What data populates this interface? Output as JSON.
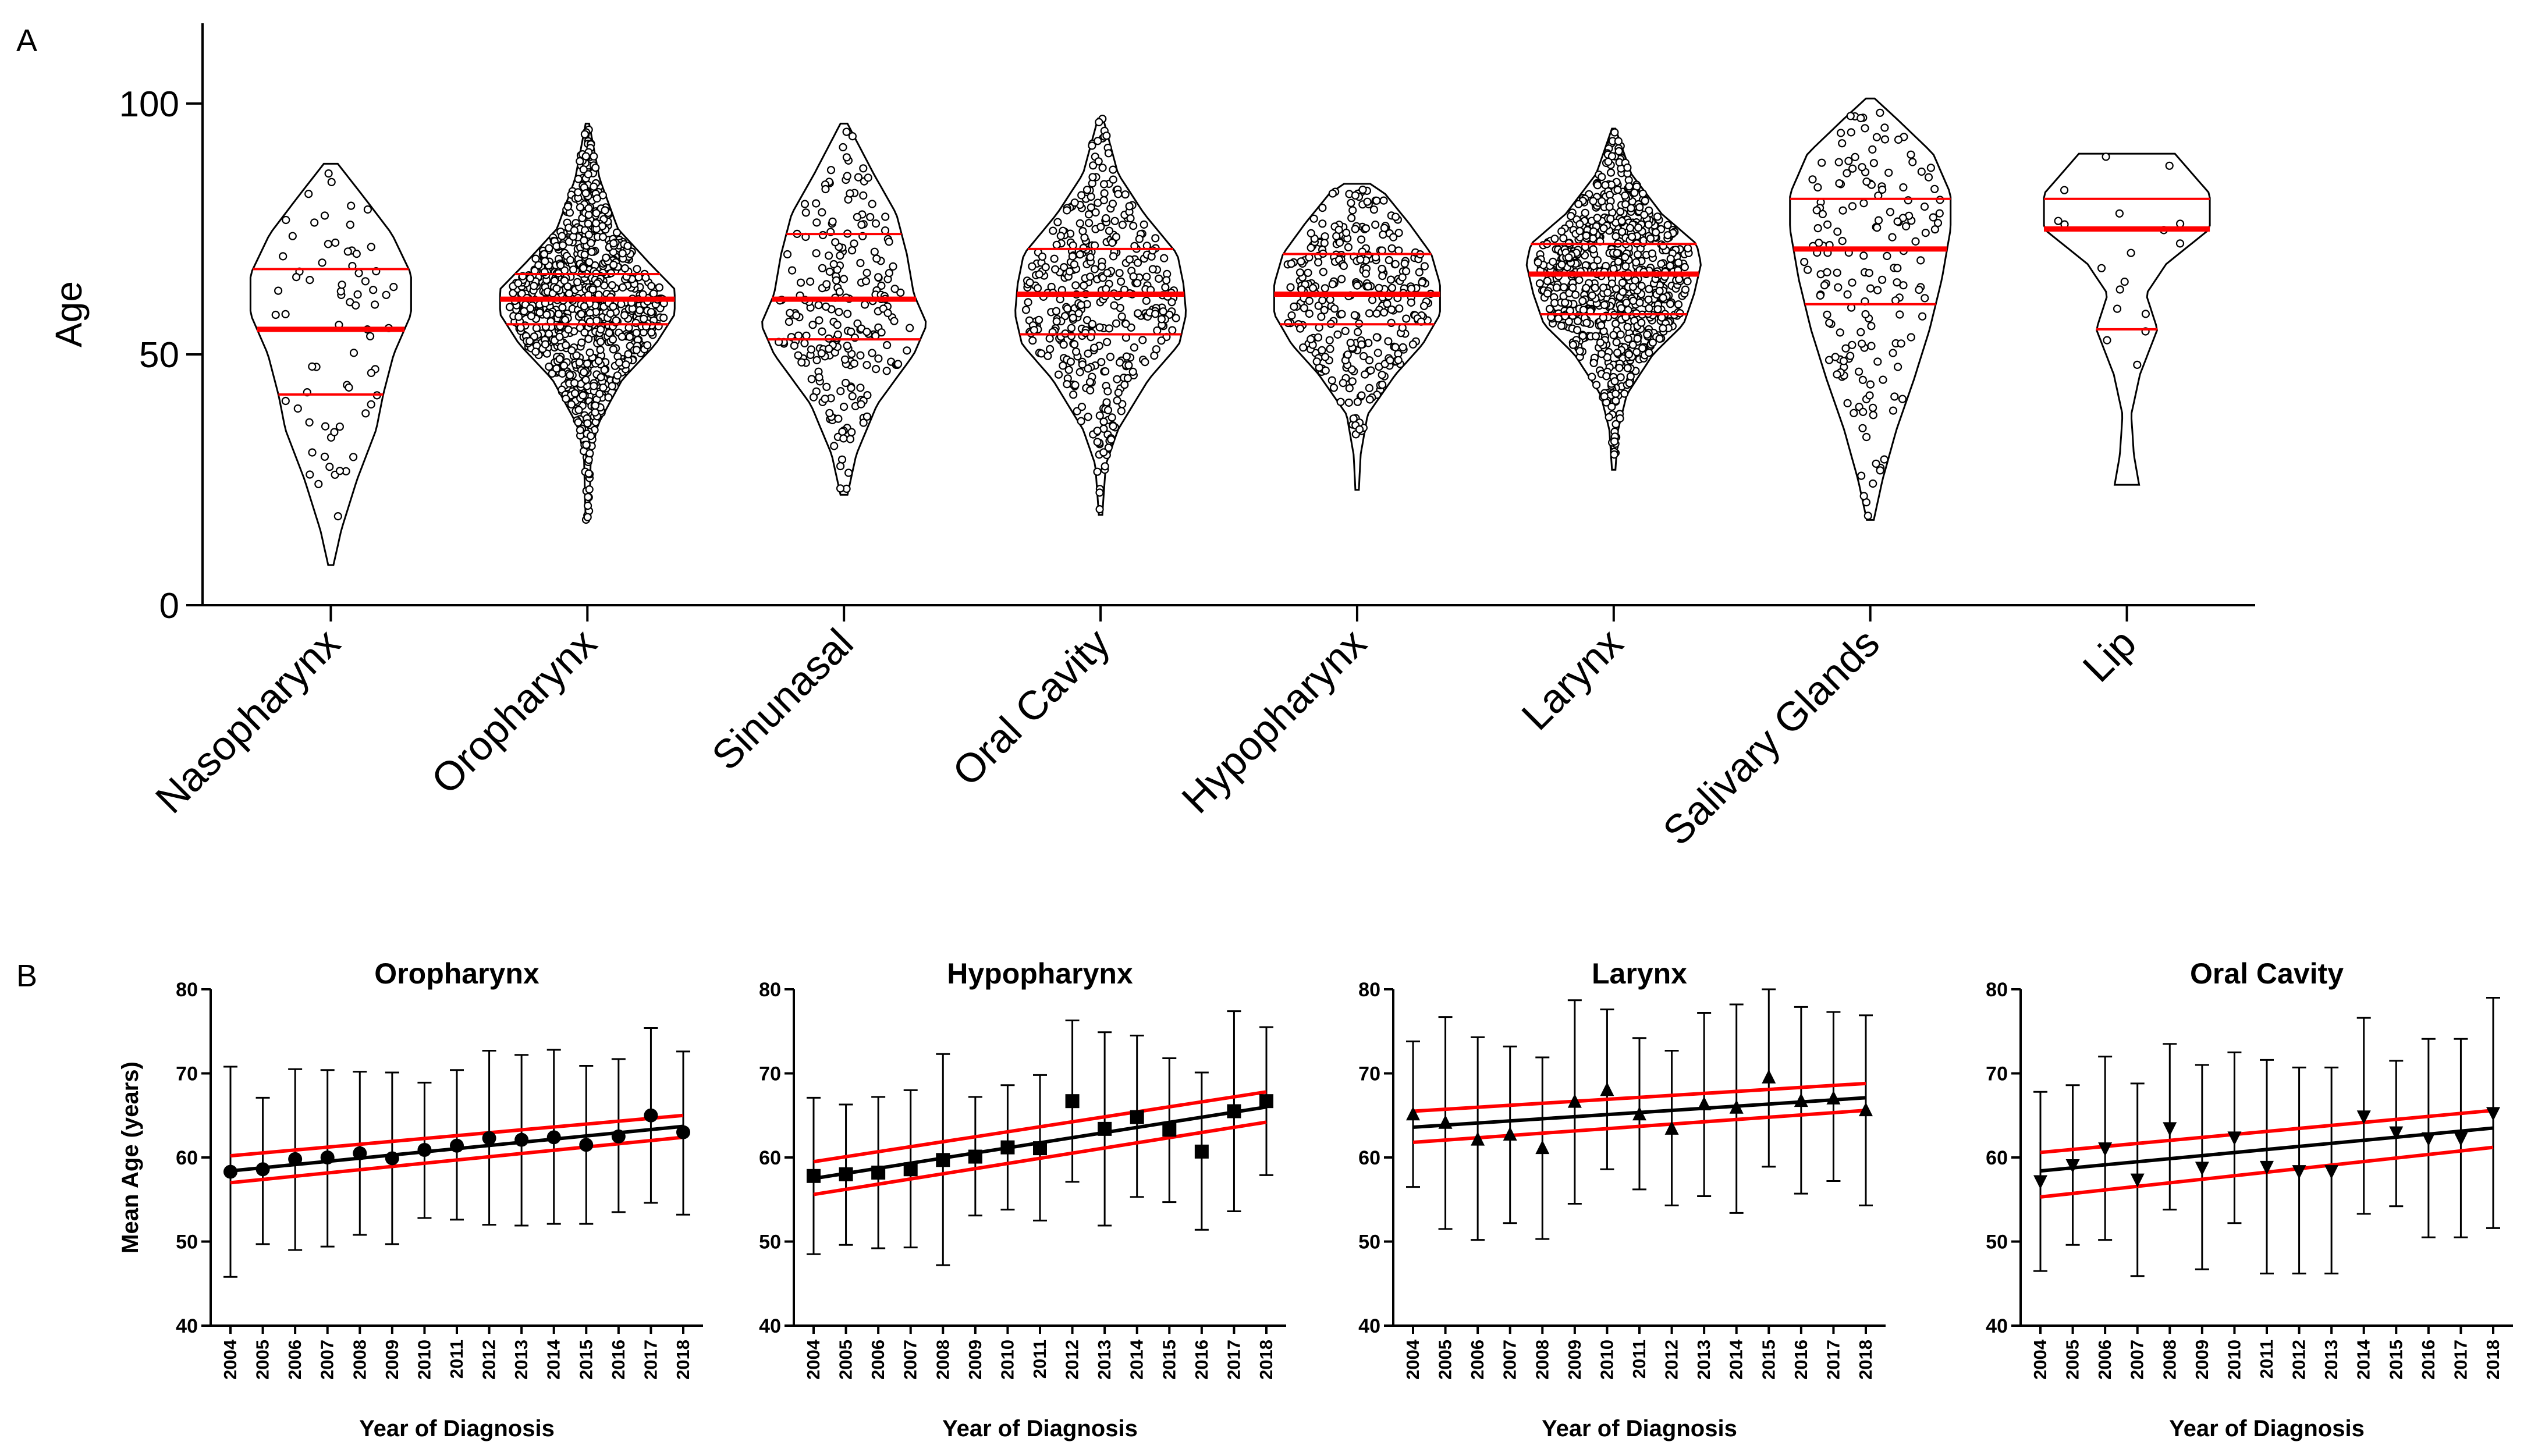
{
  "figure": {
    "panel_a_label": "A",
    "panel_b_label": "B",
    "colors": {
      "axis": "#000000",
      "trend": "#ff0000",
      "points": "#000000",
      "background": "#ffffff"
    }
  },
  "chart_data": [
    {
      "type": "violin",
      "id": "A",
      "title": "",
      "ylabel": "Age",
      "xlabel": "",
      "ylim": [
        0,
        116
      ],
      "yticks": [
        0,
        50,
        100
      ],
      "categories": [
        "Nasopharynx",
        "Oropharynx",
        "Sinunasal",
        "Oral Cavity",
        "Hypopharynx",
        "Larynx",
        "Salivary Glands",
        "Lip"
      ],
      "violins": [
        {
          "name": "Nasopharynx",
          "min": 8,
          "max": 88,
          "q1": 42,
          "median": 55,
          "q3": 67,
          "n": 70,
          "profile": [
            [
              8,
              0.03
            ],
            [
              15,
              0.12
            ],
            [
              25,
              0.3
            ],
            [
              35,
              0.52
            ],
            [
              42,
              0.6
            ],
            [
              50,
              0.72
            ],
            [
              58,
              0.92
            ],
            [
              66,
              0.92
            ],
            [
              74,
              0.7
            ],
            [
              82,
              0.35
            ],
            [
              88,
              0.08
            ]
          ]
        },
        {
          "name": "Oropharynx",
          "min": 17,
          "max": 96,
          "q1": 56,
          "median": 61,
          "q3": 66,
          "n": 900,
          "profile": [
            [
              17,
              0.02
            ],
            [
              30,
              0.04
            ],
            [
              36,
              0.12
            ],
            [
              45,
              0.4
            ],
            [
              52,
              0.78
            ],
            [
              58,
              1.0
            ],
            [
              63,
              1.0
            ],
            [
              68,
              0.72
            ],
            [
              75,
              0.35
            ],
            [
              85,
              0.14
            ],
            [
              96,
              0.02
            ]
          ]
        },
        {
          "name": "Sinunasal",
          "min": 22,
          "max": 96,
          "q1": 53,
          "median": 61,
          "q3": 74,
          "n": 230,
          "profile": [
            [
              22,
              0.04
            ],
            [
              30,
              0.14
            ],
            [
              40,
              0.38
            ],
            [
              50,
              0.8
            ],
            [
              56,
              0.95
            ],
            [
              62,
              0.8
            ],
            [
              70,
              0.72
            ],
            [
              78,
              0.6
            ],
            [
              86,
              0.34
            ],
            [
              96,
              0.04
            ]
          ]
        },
        {
          "name": "Oral Cavity",
          "min": 18,
          "max": 97,
          "q1": 54,
          "median": 62,
          "q3": 71,
          "n": 400,
          "profile": [
            [
              18,
              0.02
            ],
            [
              28,
              0.06
            ],
            [
              35,
              0.2
            ],
            [
              45,
              0.55
            ],
            [
              52,
              0.9
            ],
            [
              58,
              0.98
            ],
            [
              64,
              0.95
            ],
            [
              70,
              0.88
            ],
            [
              78,
              0.5
            ],
            [
              86,
              0.2
            ],
            [
              97,
              0.03
            ]
          ]
        },
        {
          "name": "Hypopharynx",
          "min": 23,
          "max": 84,
          "q1": 56,
          "median": 62,
          "q3": 70,
          "n": 320,
          "profile": [
            [
              23,
              0.02
            ],
            [
              30,
              0.04
            ],
            [
              38,
              0.12
            ],
            [
              46,
              0.44
            ],
            [
              52,
              0.75
            ],
            [
              58,
              0.95
            ],
            [
              64,
              0.95
            ],
            [
              70,
              0.85
            ],
            [
              76,
              0.6
            ],
            [
              82,
              0.32
            ],
            [
              84,
              0.15
            ]
          ]
        },
        {
          "name": "Larynx",
          "min": 27,
          "max": 95,
          "q1": 58,
          "median": 66,
          "q3": 72,
          "n": 750,
          "profile": [
            [
              27,
              0.02
            ],
            [
              35,
              0.05
            ],
            [
              42,
              0.15
            ],
            [
              50,
              0.45
            ],
            [
              56,
              0.8
            ],
            [
              62,
              0.92
            ],
            [
              68,
              1.0
            ],
            [
              72,
              0.95
            ],
            [
              78,
              0.55
            ],
            [
              86,
              0.2
            ],
            [
              95,
              0.02
            ]
          ]
        },
        {
          "name": "Salivary Glands",
          "min": 17,
          "max": 101,
          "q1": 60,
          "median": 71,
          "q3": 81,
          "n": 170,
          "profile": [
            [
              17,
              0.04
            ],
            [
              25,
              0.14
            ],
            [
              35,
              0.3
            ],
            [
              45,
              0.5
            ],
            [
              55,
              0.68
            ],
            [
              65,
              0.82
            ],
            [
              75,
              0.92
            ],
            [
              82,
              0.92
            ],
            [
              90,
              0.72
            ],
            [
              97,
              0.3
            ],
            [
              101,
              0.05
            ]
          ]
        },
        {
          "name": "Lip",
          "min": 24,
          "max": 90,
          "q1": 55,
          "median": 75,
          "q3": 81,
          "n": 18,
          "profile": [
            [
              24,
              0.14
            ],
            [
              30,
              0.08
            ],
            [
              38,
              0.05
            ],
            [
              46,
              0.15
            ],
            [
              55,
              0.35
            ],
            [
              62,
              0.22
            ],
            [
              68,
              0.45
            ],
            [
              75,
              0.95
            ],
            [
              82,
              0.95
            ],
            [
              88,
              0.65
            ],
            [
              90,
              0.55
            ]
          ]
        }
      ]
    },
    {
      "type": "line",
      "id": "B1",
      "title": "Oropharynx",
      "marker": "circle",
      "xlabel": "Year of Diagnosis",
      "ylabel": "Mean Age (years)",
      "ylim": [
        40,
        80
      ],
      "yticks": [
        40,
        50,
        60,
        70,
        80
      ],
      "x": [
        "2004",
        "2005",
        "2006",
        "2007",
        "2008",
        "2009",
        "2010",
        "2011",
        "2012",
        "2013",
        "2014",
        "2015",
        "2016",
        "2017",
        "2018"
      ],
      "series": [
        {
          "name": "Mean age",
          "values": [
            58.3,
            58.6,
            59.8,
            60.0,
            60.5,
            59.9,
            60.9,
            61.4,
            62.3,
            62.1,
            62.4,
            61.5,
            62.5,
            65.0,
            63.0
          ]
        }
      ],
      "error_low": [
        45.8,
        49.7,
        49.0,
        49.4,
        50.8,
        49.7,
        52.8,
        52.6,
        52.0,
        51.9,
        52.1,
        52.1,
        53.5,
        54.6,
        53.2
      ],
      "error_high": [
        70.8,
        67.1,
        70.5,
        70.4,
        70.2,
        70.1,
        68.9,
        70.4,
        72.7,
        72.2,
        72.8,
        70.9,
        71.7,
        75.4,
        72.6
      ],
      "regression": {
        "start": 58.4,
        "end": 63.7
      },
      "ci_upper": {
        "start": 60.2,
        "end": 65.0
      },
      "ci_lower": {
        "start": 57.0,
        "end": 62.4
      }
    },
    {
      "type": "line",
      "id": "B2",
      "title": "Hypopharynx",
      "marker": "square",
      "xlabel": "Year of Diagnosis",
      "ylabel": "",
      "ylim": [
        40,
        80
      ],
      "yticks": [
        40,
        50,
        60,
        70,
        80
      ],
      "x": [
        "2004",
        "2005",
        "2006",
        "2007",
        "2008",
        "2009",
        "2010",
        "2011",
        "2012",
        "2013",
        "2014",
        "2015",
        "2016",
        "2017",
        "2018"
      ],
      "series": [
        {
          "name": "Mean age",
          "values": [
            57.8,
            58.0,
            58.2,
            58.6,
            59.7,
            60.1,
            61.2,
            61.1,
            66.7,
            63.4,
            64.8,
            63.3,
            60.7,
            65.5,
            66.7
          ]
        }
      ],
      "error_low": [
        48.5,
        49.6,
        49.2,
        49.3,
        47.2,
        53.1,
        53.8,
        52.5,
        57.1,
        51.9,
        55.3,
        54.7,
        51.4,
        53.6,
        57.9
      ],
      "error_high": [
        67.1,
        66.3,
        67.2,
        68.0,
        72.3,
        67.2,
        68.6,
        69.8,
        76.3,
        74.9,
        74.5,
        71.8,
        70.1,
        77.4,
        75.5
      ],
      "regression": {
        "start": 57.5,
        "end": 66.0
      },
      "ci_upper": {
        "start": 59.5,
        "end": 67.8
      },
      "ci_lower": {
        "start": 55.6,
        "end": 64.2
      }
    },
    {
      "type": "line",
      "id": "B3",
      "title": "Larynx",
      "marker": "triangle-up",
      "xlabel": "Year of Diagnosis",
      "ylabel": "",
      "ylim": [
        40,
        80
      ],
      "yticks": [
        40,
        50,
        60,
        70,
        80
      ],
      "x": [
        "2004",
        "2005",
        "2006",
        "2007",
        "2008",
        "2009",
        "2010",
        "2011",
        "2012",
        "2013",
        "2014",
        "2015",
        "2016",
        "2017",
        "2018"
      ],
      "series": [
        {
          "name": "Mean age",
          "values": [
            65.1,
            64.1,
            62.1,
            62.7,
            61.1,
            66.6,
            68.0,
            65.1,
            63.4,
            66.3,
            65.9,
            69.5,
            66.7,
            67.0,
            65.6
          ]
        }
      ],
      "error_low": [
        56.5,
        51.5,
        50.2,
        52.2,
        50.3,
        54.5,
        58.6,
        56.2,
        54.3,
        55.4,
        53.4,
        58.9,
        55.7,
        57.2,
        54.3
      ],
      "error_high": [
        73.8,
        76.7,
        74.3,
        73.2,
        71.9,
        78.7,
        77.6,
        74.2,
        72.7,
        77.2,
        78.2,
        80.0,
        77.9,
        77.3,
        76.9
      ],
      "regression": {
        "start": 63.6,
        "end": 67.1
      },
      "ci_upper": {
        "start": 65.5,
        "end": 68.8
      },
      "ci_lower": {
        "start": 61.8,
        "end": 65.6
      }
    },
    {
      "type": "line",
      "id": "B4",
      "title": "Oral Cavity",
      "marker": "triangle-down",
      "xlabel": "Year of Diagnosis",
      "ylabel": "",
      "ylim": [
        40,
        80
      ],
      "yticks": [
        40,
        50,
        60,
        70,
        80
      ],
      "x": [
        "2004",
        "2005",
        "2006",
        "2007",
        "2008",
        "2009",
        "2010",
        "2011",
        "2012",
        "2013",
        "2014",
        "2015",
        "2016",
        "2017",
        "2018"
      ],
      "series": [
        {
          "name": "Mean age",
          "values": [
            57.2,
            59.1,
            61.1,
            57.4,
            63.5,
            58.8,
            62.4,
            58.9,
            58.4,
            58.4,
            64.9,
            63.0,
            62.3,
            62.3,
            65.3
          ]
        }
      ],
      "error_low": [
        46.5,
        49.6,
        50.2,
        45.9,
        53.8,
        46.7,
        52.2,
        46.2,
        46.2,
        46.2,
        53.3,
        54.2,
        50.5,
        50.5,
        51.6
      ],
      "error_high": [
        67.8,
        68.6,
        72.0,
        68.8,
        73.5,
        71.0,
        72.5,
        71.6,
        70.7,
        70.7,
        76.6,
        71.5,
        74.1,
        74.1,
        79.0
      ],
      "regression": {
        "start": 58.4,
        "end": 63.5
      },
      "ci_upper": {
        "start": 60.6,
        "end": 65.6
      },
      "ci_lower": {
        "start": 55.3,
        "end": 61.2
      }
    }
  ]
}
